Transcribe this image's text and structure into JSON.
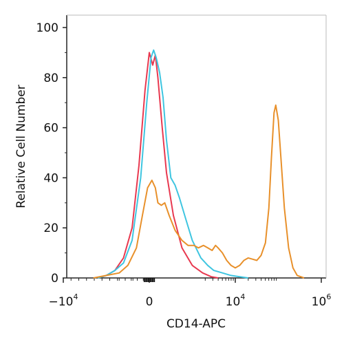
{
  "chart_data": {
    "type": "line",
    "title": "",
    "xlabel": "CD14-APC",
    "ylabel": "Relative Cell Number",
    "x_scale": "biexponential",
    "x_tick_labels": [
      {
        "base": "−10",
        "exp": "4"
      },
      {
        "base": "0",
        "exp": ""
      },
      {
        "base": "10",
        "exp": "4"
      },
      {
        "base": "10",
        "exp": "6"
      }
    ],
    "y_tick_labels": [
      "0",
      "20",
      "40",
      "60",
      "80",
      "100"
    ],
    "ylim": [
      0,
      100
    ],
    "grid": false,
    "legend": "none",
    "series": [
      {
        "color": "#e8384f",
        "x_units": "biexponential display position (tick −10^4 = −1, 0 = 0, 10^4 = 1, 10^6 = 2)",
        "points": [
          [
            -0.6,
            0
          ],
          [
            -0.5,
            1
          ],
          [
            -0.4,
            3
          ],
          [
            -0.3,
            8
          ],
          [
            -0.2,
            20
          ],
          [
            -0.12,
            45
          ],
          [
            -0.05,
            75
          ],
          [
            0,
            90
          ],
          [
            0.04,
            85
          ],
          [
            0.07,
            89
          ],
          [
            0.1,
            80
          ],
          [
            0.15,
            60
          ],
          [
            0.2,
            42
          ],
          [
            0.28,
            25
          ],
          [
            0.38,
            12
          ],
          [
            0.5,
            5
          ],
          [
            0.62,
            2
          ],
          [
            0.72,
            0.5
          ],
          [
            0.8,
            0
          ]
        ]
      },
      {
        "color": "#3ec5e0",
        "points": [
          [
            -0.6,
            0
          ],
          [
            -0.5,
            1
          ],
          [
            -0.4,
            3
          ],
          [
            -0.3,
            6
          ],
          [
            -0.2,
            15
          ],
          [
            -0.1,
            40
          ],
          [
            -0.03,
            70
          ],
          [
            0.02,
            88
          ],
          [
            0.05,
            91
          ],
          [
            0.08,
            88
          ],
          [
            0.12,
            82
          ],
          [
            0.16,
            72
          ],
          [
            0.2,
            55
          ],
          [
            0.25,
            40
          ],
          [
            0.3,
            37
          ],
          [
            0.35,
            32
          ],
          [
            0.42,
            24
          ],
          [
            0.5,
            15
          ],
          [
            0.6,
            8
          ],
          [
            0.68,
            5
          ],
          [
            0.75,
            3
          ],
          [
            0.85,
            2
          ],
          [
            0.95,
            1
          ],
          [
            1.05,
            0.5
          ],
          [
            1.15,
            0
          ]
        ]
      },
      {
        "color": "#e8902a",
        "points": [
          [
            -0.65,
            0
          ],
          [
            -0.5,
            1
          ],
          [
            -0.35,
            2
          ],
          [
            -0.25,
            5
          ],
          [
            -0.15,
            12
          ],
          [
            -0.08,
            25
          ],
          [
            -0.02,
            36
          ],
          [
            0.03,
            39
          ],
          [
            0.07,
            36
          ],
          [
            0.1,
            30
          ],
          [
            0.14,
            29
          ],
          [
            0.18,
            30
          ],
          [
            0.23,
            25
          ],
          [
            0.3,
            19
          ],
          [
            0.38,
            15
          ],
          [
            0.45,
            13
          ],
          [
            0.52,
            13
          ],
          [
            0.57,
            12
          ],
          [
            0.63,
            13
          ],
          [
            0.68,
            12
          ],
          [
            0.73,
            11
          ],
          [
            0.77,
            13
          ],
          [
            0.8,
            12
          ],
          [
            0.85,
            10
          ],
          [
            0.9,
            7
          ],
          [
            0.95,
            5
          ],
          [
            1.0,
            4
          ],
          [
            1.05,
            5
          ],
          [
            1.1,
            7
          ],
          [
            1.15,
            8
          ],
          [
            1.2,
            7.5
          ],
          [
            1.25,
            7
          ],
          [
            1.3,
            9
          ],
          [
            1.35,
            14
          ],
          [
            1.39,
            28
          ],
          [
            1.42,
            48
          ],
          [
            1.45,
            66
          ],
          [
            1.47,
            69
          ],
          [
            1.5,
            63
          ],
          [
            1.53,
            48
          ],
          [
            1.57,
            28
          ],
          [
            1.62,
            12
          ],
          [
            1.67,
            4
          ],
          [
            1.72,
            1
          ],
          [
            1.8,
            0
          ]
        ]
      }
    ]
  }
}
